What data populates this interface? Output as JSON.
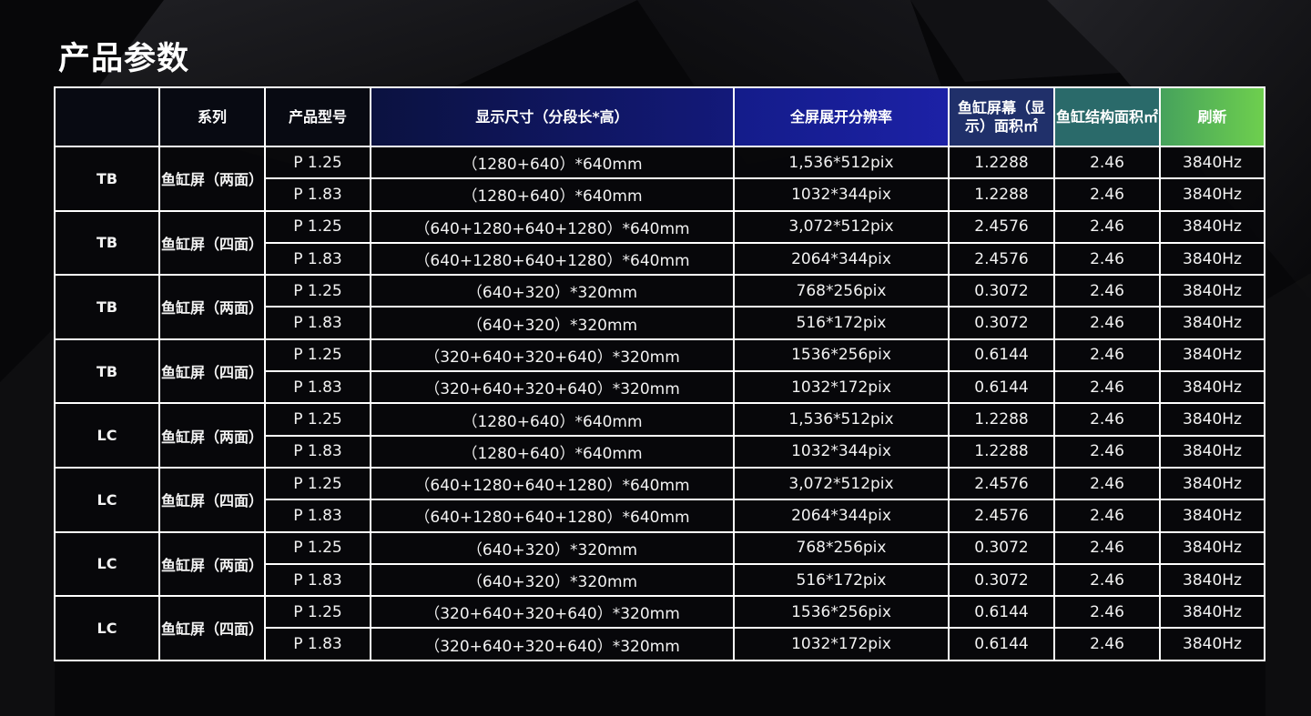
{
  "title": "产品参数",
  "colors": {
    "header_start": "#0b1240",
    "header_mid": "#1c21a6",
    "header_end": "#6ecf4e",
    "border": "#ffffff",
    "background": "#070709"
  },
  "table": {
    "headers": [
      "",
      "系列",
      "产品型号",
      "显示尺寸（分段长*高）",
      "全屏展开分辨率",
      "鱼缸屏幕（显示）面积㎡",
      "鱼缸结构面积㎡",
      "刷新"
    ],
    "groups": [
      {
        "code": "TB",
        "series": "鱼缸屏（两面）",
        "rows": [
          {
            "model": "P 1.25",
            "size": "（1280+640）*640mm",
            "resolution": "1,536*512pix",
            "display_area": "1.2288",
            "struct_area": "2.46",
            "refresh": "3840Hz"
          },
          {
            "model": "P 1.83",
            "size": "（1280+640）*640mm",
            "resolution": "1032*344pix",
            "display_area": "1.2288",
            "struct_area": "2.46",
            "refresh": "3840Hz"
          }
        ]
      },
      {
        "code": "TB",
        "series": "鱼缸屏（四面）",
        "rows": [
          {
            "model": "P 1.25",
            "size": "（640+1280+640+1280）*640mm",
            "resolution": "3,072*512pix",
            "display_area": "2.4576",
            "struct_area": "2.46",
            "refresh": "3840Hz"
          },
          {
            "model": "P 1.83",
            "size": "（640+1280+640+1280）*640mm",
            "resolution": "2064*344pix",
            "display_area": "2.4576",
            "struct_area": "2.46",
            "refresh": "3840Hz"
          }
        ]
      },
      {
        "code": "TB",
        "series": "鱼缸屏（两面）",
        "rows": [
          {
            "model": "P 1.25",
            "size": "（640+320）*320mm",
            "resolution": "768*256pix",
            "display_area": "0.3072",
            "struct_area": "2.46",
            "refresh": "3840Hz"
          },
          {
            "model": "P 1.83",
            "size": "（640+320）*320mm",
            "resolution": "516*172pix",
            "display_area": "0.3072",
            "struct_area": "2.46",
            "refresh": "3840Hz"
          }
        ]
      },
      {
        "code": "TB",
        "series": "鱼缸屏（四面）",
        "rows": [
          {
            "model": "P 1.25",
            "size": "（320+640+320+640）*320mm",
            "resolution": "1536*256pix",
            "display_area": "0.6144",
            "struct_area": "2.46",
            "refresh": "3840Hz"
          },
          {
            "model": "P 1.83",
            "size": "（320+640+320+640）*320mm",
            "resolution": "1032*172pix",
            "display_area": "0.6144",
            "struct_area": "2.46",
            "refresh": "3840Hz"
          }
        ]
      },
      {
        "code": "LC",
        "series": "鱼缸屏（两面）",
        "rows": [
          {
            "model": "P 1.25",
            "size": "（1280+640）*640mm",
            "resolution": "1,536*512pix",
            "display_area": "1.2288",
            "struct_area": "2.46",
            "refresh": "3840Hz"
          },
          {
            "model": "P 1.83",
            "size": "（1280+640）*640mm",
            "resolution": "1032*344pix",
            "display_area": "1.2288",
            "struct_area": "2.46",
            "refresh": "3840Hz"
          }
        ]
      },
      {
        "code": "LC",
        "series": "鱼缸屏（四面）",
        "rows": [
          {
            "model": "P 1.25",
            "size": "（640+1280+640+1280）*640mm",
            "resolution": "3,072*512pix",
            "display_area": "2.4576",
            "struct_area": "2.46",
            "refresh": "3840Hz"
          },
          {
            "model": "P 1.83",
            "size": "（640+1280+640+1280）*640mm",
            "resolution": "2064*344pix",
            "display_area": "2.4576",
            "struct_area": "2.46",
            "refresh": "3840Hz"
          }
        ]
      },
      {
        "code": "LC",
        "series": "鱼缸屏（两面）",
        "rows": [
          {
            "model": "P 1.25",
            "size": "（640+320）*320mm",
            "resolution": "768*256pix",
            "display_area": "0.3072",
            "struct_area": "2.46",
            "refresh": "3840Hz"
          },
          {
            "model": "P 1.83",
            "size": "（640+320）*320mm",
            "resolution": "516*172pix",
            "display_area": "0.3072",
            "struct_area": "2.46",
            "refresh": "3840Hz"
          }
        ]
      },
      {
        "code": "LC",
        "series": "鱼缸屏（四面）",
        "rows": [
          {
            "model": "P 1.25",
            "size": "（320+640+320+640）*320mm",
            "resolution": "1536*256pix",
            "display_area": "0.6144",
            "struct_area": "2.46",
            "refresh": "3840Hz"
          },
          {
            "model": "P 1.83",
            "size": "（320+640+320+640）*320mm",
            "resolution": "1032*172pix",
            "display_area": "0.6144",
            "struct_area": "2.46",
            "refresh": "3840Hz"
          }
        ]
      }
    ]
  }
}
